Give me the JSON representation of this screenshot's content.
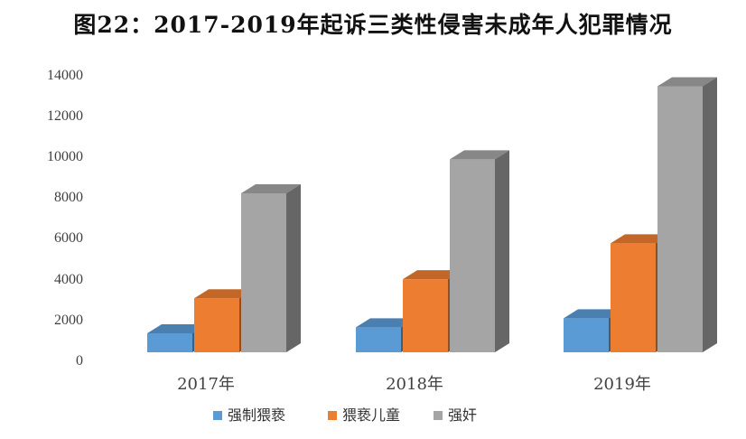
{
  "chart_data": {
    "type": "bar",
    "title": "图22：2017-2019年起诉三类性侵害未成年人犯罪情况",
    "categories": [
      "2017年",
      "2018年",
      "2019年"
    ],
    "series": [
      {
        "name": "强制猥亵",
        "color": "#5b9bd5",
        "values": [
          950,
          1250,
          1700
        ]
      },
      {
        "name": "猥亵儿童",
        "color": "#ed7d31",
        "values": [
          2700,
          3650,
          5450
        ]
      },
      {
        "name": "强奸",
        "color": "#a5a5a5",
        "values": [
          7950,
          9650,
          13300
        ]
      }
    ],
    "y_ticks": [
      "0",
      "2000",
      "4000",
      "6000",
      "8000",
      "10000",
      "12000",
      "14000"
    ],
    "ylim": [
      0,
      14000
    ],
    "grid": false,
    "legend_position": "bottom",
    "projection": "3d-column"
  }
}
